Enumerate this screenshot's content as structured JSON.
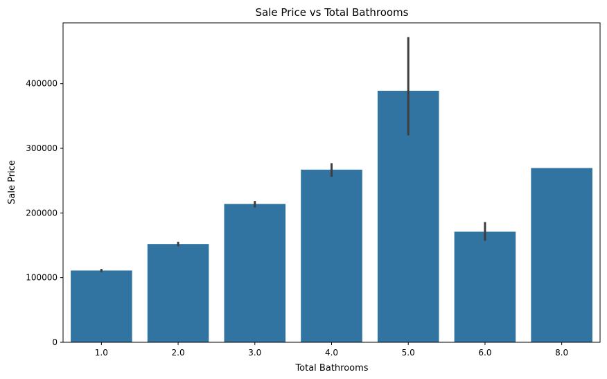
{
  "chart_data": {
    "type": "bar",
    "title": "Sale Price vs Total Bathrooms",
    "xlabel": "Total Bathrooms",
    "ylabel": "Sale Price",
    "categories": [
      "1.0",
      "2.0",
      "3.0",
      "4.0",
      "5.0",
      "6.0",
      "8.0"
    ],
    "values": [
      111000,
      152000,
      214000,
      267000,
      389000,
      171000,
      269500
    ],
    "error_low": [
      108500,
      148500,
      208500,
      256000,
      320000,
      157000,
      269500
    ],
    "error_high": [
      113500,
      155500,
      218500,
      277000,
      472000,
      186000,
      269500
    ],
    "yticks": [
      0,
      100000,
      200000,
      300000,
      400000
    ],
    "ytick_labels": [
      "0",
      "100000",
      "200000",
      "300000",
      "400000"
    ],
    "ylim": [
      0,
      494000
    ],
    "grid": false,
    "bar_color": "#3274a1",
    "errorbar_color": "#3d3d3d"
  }
}
